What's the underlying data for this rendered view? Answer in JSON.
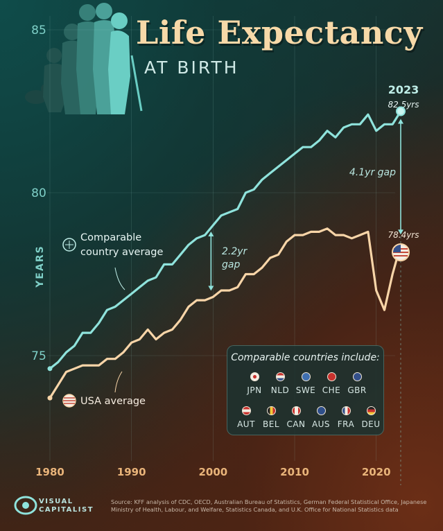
{
  "title": "Life Expectancy",
  "subtitle": "AT BIRTH",
  "source": "Source: KFF analysis of CDC, OECD, Australian Bureau of Statistics, German Federal Statistical Office, Japanese Ministry of Health, Labour, and Welfare, Statistics Canada, and U.K. Office for National Statistics data",
  "logo": {
    "line1": "VISUAL",
    "line2": "CAPITALIST"
  },
  "legend_box": {
    "title": "Comparable countries include:",
    "countries": [
      "JPN",
      "NLD",
      "SWE",
      "CHE",
      "GBR",
      "AUT",
      "BEL",
      "CAN",
      "AUS",
      "FRA",
      "DEU"
    ]
  },
  "colors": {
    "comparable": "#8fe3dc",
    "usa": "#f8d5a8",
    "title": "#f7d9a8",
    "axis_text": "#7fd0c8"
  },
  "chart_data": {
    "type": "line",
    "ylabel": "YEARS",
    "xlabel": "",
    "xlim": [
      1980,
      2023
    ],
    "ylim": [
      72.5,
      85.5
    ],
    "x_ticks": [
      1980,
      1990,
      2000,
      2010,
      2020
    ],
    "y_ticks": [
      75,
      80,
      85
    ],
    "grid": true,
    "series": [
      {
        "name": "Comparable country average",
        "x": [
          1980,
          1981,
          1982,
          1983,
          1984,
          1985,
          1986,
          1987,
          1988,
          1989,
          1990,
          1991,
          1992,
          1993,
          1994,
          1995,
          1996,
          1997,
          1998,
          1999,
          2000,
          2001,
          2002,
          2003,
          2004,
          2005,
          2006,
          2007,
          2008,
          2009,
          2010,
          2011,
          2012,
          2013,
          2014,
          2015,
          2016,
          2017,
          2018,
          2019,
          2020,
          2021,
          2022,
          2023
        ],
        "values": [
          74.6,
          74.8,
          75.1,
          75.3,
          75.7,
          75.7,
          76.0,
          76.4,
          76.5,
          76.7,
          76.9,
          77.1,
          77.3,
          77.4,
          77.8,
          77.8,
          78.1,
          78.4,
          78.6,
          78.7,
          79.0,
          79.3,
          79.4,
          79.5,
          80.0,
          80.1,
          80.4,
          80.6,
          80.8,
          81.0,
          81.2,
          81.4,
          81.4,
          81.6,
          81.9,
          81.7,
          82.0,
          82.1,
          82.1,
          82.4,
          81.9,
          82.1,
          82.1,
          82.5
        ]
      },
      {
        "name": "USA average",
        "x": [
          1980,
          1981,
          1982,
          1983,
          1984,
          1985,
          1986,
          1987,
          1988,
          1989,
          1990,
          1991,
          1992,
          1993,
          1994,
          1995,
          1996,
          1997,
          1998,
          1999,
          2000,
          2001,
          2002,
          2003,
          2004,
          2005,
          2006,
          2007,
          2008,
          2009,
          2010,
          2011,
          2012,
          2013,
          2014,
          2015,
          2016,
          2017,
          2018,
          2019,
          2020,
          2021,
          2022,
          2023
        ],
        "values": [
          73.7,
          74.1,
          74.5,
          74.6,
          74.7,
          74.7,
          74.7,
          74.9,
          74.9,
          75.1,
          75.4,
          75.5,
          75.8,
          75.5,
          75.7,
          75.8,
          76.1,
          76.5,
          76.7,
          76.7,
          76.8,
          77.0,
          77.0,
          77.1,
          77.5,
          77.5,
          77.7,
          78.0,
          78.1,
          78.5,
          78.7,
          78.7,
          78.8,
          78.8,
          78.9,
          78.7,
          78.7,
          78.6,
          78.7,
          78.8,
          77.0,
          76.4,
          77.5,
          78.4
        ]
      }
    ],
    "annotations": {
      "year_2023": "2023",
      "comparable_2023": "82.5yrs",
      "usa_2023": "78.4yrs",
      "gap_2023": "4.1yr gap",
      "gap_2000_line1": "2.2yr",
      "gap_2000_line2": "gap",
      "comparable_label_line1": "Comparable",
      "comparable_label_line2": "country average",
      "usa_label": "USA average"
    }
  }
}
